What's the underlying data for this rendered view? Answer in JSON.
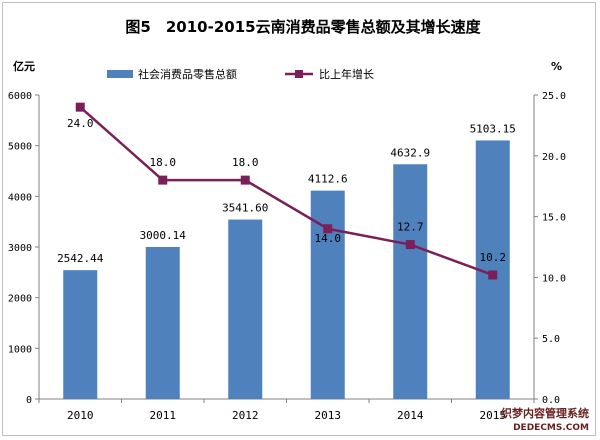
{
  "chart_data": {
    "type": "bar+line",
    "title": "图5　2010-2015云南消费品零售总额及其增长速度",
    "categories": [
      "2010",
      "2011",
      "2012",
      "2013",
      "2014",
      "2015"
    ],
    "left_axis": {
      "unit": "亿元",
      "range": [
        0,
        6000
      ],
      "ticks": [
        "0",
        "1000",
        "2000",
        "3000",
        "4000",
        "5000",
        "6000"
      ]
    },
    "right_axis": {
      "unit": "%",
      "range": [
        0,
        25
      ],
      "ticks": [
        "0.0",
        "5.0",
        "10.0",
        "15.0",
        "20.0",
        "25.0"
      ]
    },
    "series": [
      {
        "name": "社会消费品零售总额",
        "type": "bar",
        "axis": "left",
        "values": [
          2542.44,
          3000.14,
          3541.6,
          4112.6,
          4632.9,
          5103.15
        ],
        "labels": [
          "2542.44",
          "3000.14",
          "3541.60",
          "4112.6",
          "4632.9",
          "5103.15"
        ]
      },
      {
        "name": "比上年增长",
        "type": "line",
        "axis": "right",
        "values": [
          24.0,
          18.0,
          18.0,
          14.0,
          12.7,
          10.2
        ],
        "labels": [
          "24.0",
          "18.0",
          "18.0",
          "14.0",
          "12.7",
          "10.2"
        ]
      }
    ],
    "legend_position": "top",
    "grid": false
  },
  "colors": {
    "bar": "#4f81bd",
    "line": "#7b1f59",
    "marker": "#7b1f59",
    "axis": "#808080"
  },
  "watermark": {
    "top": "织梦内容管理系统",
    "bottom": "DEDECMS.COM"
  }
}
